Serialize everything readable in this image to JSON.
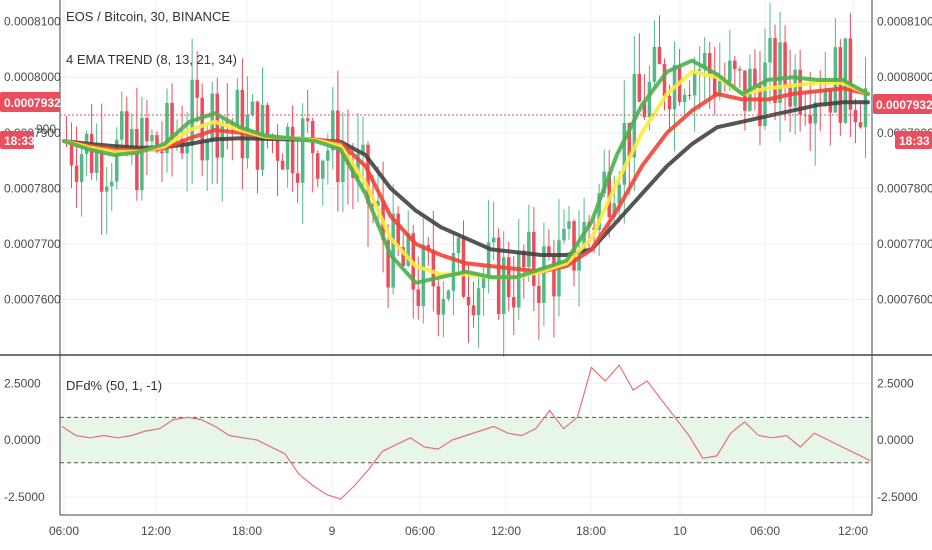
{
  "legend": {
    "symbol_line": "EOS / Bitcoin, 30, BINANCE",
    "indicator_line": "4 EMA TREND (8, 13, 21, 34)",
    "osc_line": "DFd% (50, 1, -1)"
  },
  "badges": {
    "price": "0.0007932",
    "countdown": "18:33",
    "left_partial": "900"
  },
  "colors": {
    "up": "#53b987",
    "down": "#eb4d5c",
    "ema8": "#4caf50",
    "ema13": "#ffeb3b",
    "ema21": "#f44336",
    "ema34": "#424242",
    "osc": "#e57373",
    "band_fill": "#e8f5e9",
    "badge": "#eb4d5c"
  },
  "chart_data": [
    {
      "type": "candlestick",
      "title": "EOS / Bitcoin, 30, BINANCE",
      "yticks": [
        "0.0007600",
        "0.0007700",
        "0.0007800",
        "0.0007900",
        "0.0008000",
        "0.0008100"
      ],
      "ylim": [
        0.00075,
        0.000813
      ],
      "xticks": [
        "06:00",
        "12:00",
        "18:00",
        "9",
        "06:00",
        "12:00",
        "18:00",
        "10",
        "06:00",
        "12:00"
      ],
      "current_price": 0.0007932,
      "series": [
        {
          "name": "EMA 8",
          "values": [
            0.0007885,
            0.000787,
            0.000786,
            0.0007865,
            0.000788,
            0.000792,
            0.0007935,
            0.000791,
            0.0007895,
            0.000789,
            0.0007885,
            0.000787,
            0.000779,
            0.000768,
            0.000763,
            0.000764,
            0.000765,
            0.000764,
            0.000764,
            0.0007655,
            0.000767,
            0.000774,
            0.000786,
            0.000795,
            0.000801,
            0.000803,
            0.0008005,
            0.000797,
            0.0007995,
            0.0008,
            0.0007995,
            0.0007995,
            0.000797
          ]
        },
        {
          "name": "EMA 13",
          "values": [
            0.0007885,
            0.0007874,
            0.0007866,
            0.0007866,
            0.0007875,
            0.0007905,
            0.000792,
            0.0007905,
            0.0007893,
            0.000789,
            0.0007887,
            0.0007877,
            0.000781,
            0.000771,
            0.000766,
            0.0007645,
            0.0007645,
            0.000764,
            0.000764,
            0.000765,
            0.0007665,
            0.000771,
            0.000781,
            0.00079,
            0.000797,
            0.000801,
            0.0008,
            0.000797,
            0.000798,
            0.0007985,
            0.000799,
            0.000799,
            0.000797
          ]
        },
        {
          "name": "EMA 21",
          "values": [
            0.0007885,
            0.0007877,
            0.000787,
            0.0007868,
            0.0007872,
            0.000789,
            0.0007905,
            0.00079,
            0.0007893,
            0.000789,
            0.0007888,
            0.0007882,
            0.000784,
            0.000775,
            0.00077,
            0.000768,
            0.0007665,
            0.000766,
            0.0007655,
            0.000765,
            0.000766,
            0.000769,
            0.000776,
            0.000784,
            0.00079,
            0.000794,
            0.000797,
            0.000796,
            0.000796,
            0.000797,
            0.0007975,
            0.000798,
            0.000797
          ]
        },
        {
          "name": "EMA 34",
          "values": [
            0.0007885,
            0.000788,
            0.0007876,
            0.0007873,
            0.0007874,
            0.000788,
            0.0007888,
            0.000789,
            0.0007889,
            0.0007888,
            0.0007887,
            0.0007884,
            0.000786,
            0.00078,
            0.000776,
            0.000773,
            0.000771,
            0.000769,
            0.0007685,
            0.000768,
            0.000768,
            0.000769,
            0.000774,
            0.000779,
            0.000784,
            0.000788,
            0.000791,
            0.000792,
            0.000793,
            0.000794,
            0.000795,
            0.0007955,
            0.0007955
          ]
        }
      ]
    },
    {
      "type": "line",
      "title": "DFd% (50, 1, -1)",
      "yticks": [
        "-2.5000",
        "0.0000",
        "2.5000"
      ],
      "ylim": [
        -3.3,
        3.7
      ],
      "band": [
        -1,
        1
      ],
      "series": [
        {
          "name": "DFd%",
          "values": [
            0.6,
            0.2,
            0.1,
            0.2,
            0.1,
            0.2,
            0.4,
            0.5,
            0.9,
            1.0,
            0.9,
            0.6,
            0.2,
            0.1,
            0.0,
            -0.3,
            -0.6,
            -1.5,
            -2.0,
            -2.4,
            -2.6,
            -2.0,
            -1.3,
            -0.5,
            -0.2,
            0.1,
            -0.3,
            -0.4,
            0.0,
            0.2,
            0.4,
            0.6,
            0.3,
            0.2,
            0.5,
            1.3,
            0.5,
            1.0,
            3.2,
            2.6,
            3.3,
            2.2,
            2.6,
            1.8,
            1.0,
            0.2,
            -0.8,
            -0.7,
            0.3,
            0.8,
            0.2,
            0.1,
            0.2,
            -0.3,
            0.3,
            0.0,
            -0.3,
            -0.6,
            -0.9
          ]
        }
      ]
    }
  ]
}
